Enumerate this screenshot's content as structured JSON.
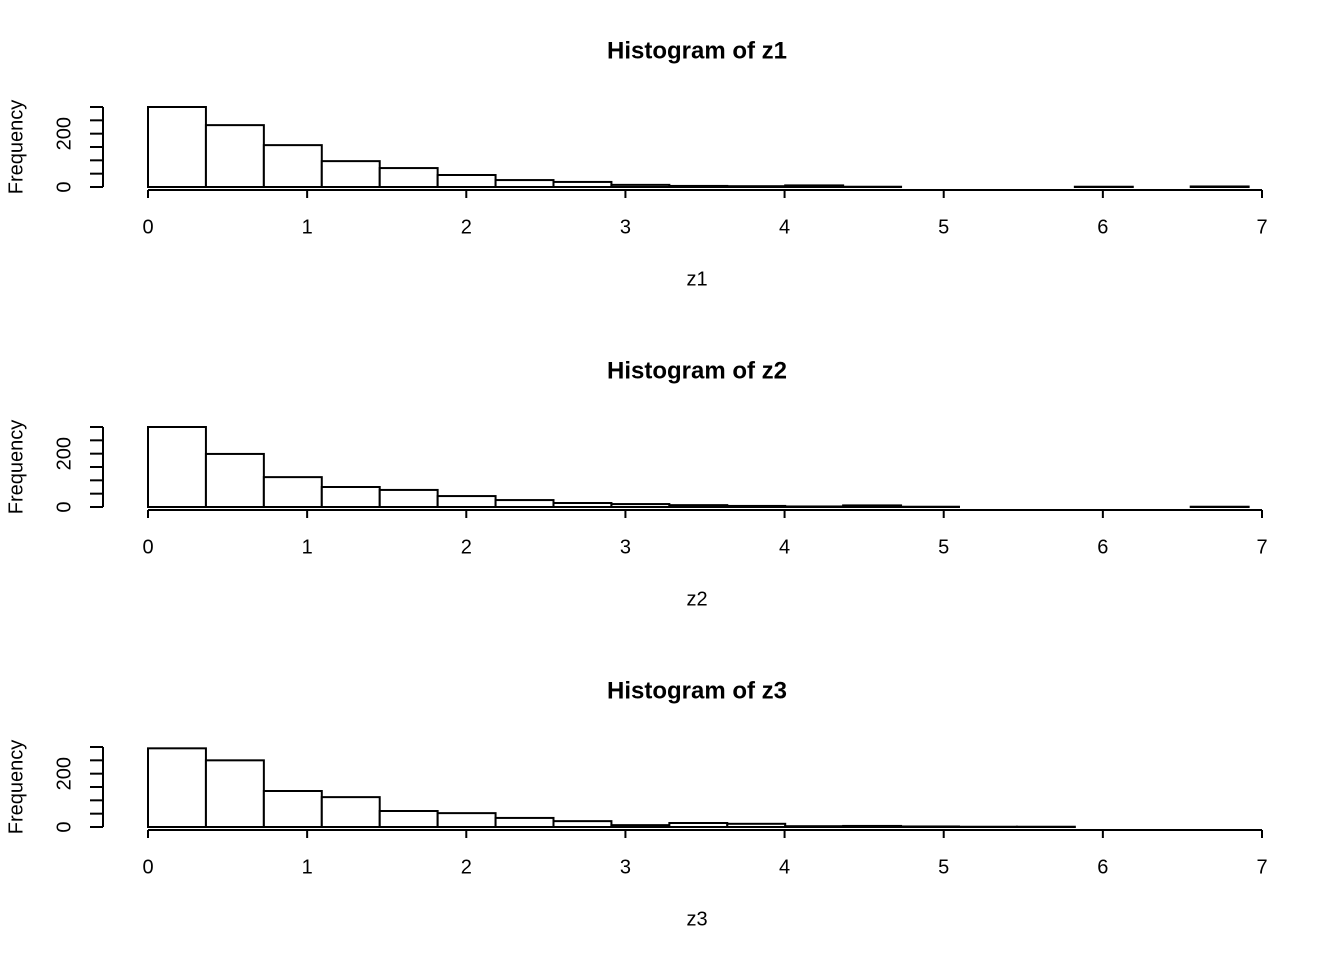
{
  "chart_data": [
    {
      "type": "histogram",
      "title": "Histogram of z1",
      "xlabel": "z1",
      "ylabel": "Frequency",
      "bins": [
        0,
        0.364,
        0.728,
        1.092,
        1.456,
        1.82,
        2.184,
        2.548,
        2.912,
        3.276,
        3.64,
        4.004,
        4.368,
        4.732,
        5.096,
        5.46,
        5.824,
        6.188,
        6.552,
        6.916
      ],
      "counts": [
        300,
        232,
        157,
        97,
        71,
        45,
        26,
        19,
        8,
        4,
        3,
        6,
        1,
        0,
        0,
        0,
        1,
        0,
        2
      ],
      "xlim": [
        0,
        7
      ],
      "xticks": [
        0,
        1,
        2,
        3,
        4,
        5,
        6,
        7
      ],
      "ylim": [
        0,
        300
      ],
      "yticks": [
        0,
        200
      ],
      "yminor_ticks": [
        50,
        100,
        150,
        250,
        300
      ],
      "color": "#ffffff"
    },
    {
      "type": "histogram",
      "title": "Histogram of z2",
      "xlabel": "z2",
      "ylabel": "Frequency",
      "bins": [
        0,
        0.364,
        0.728,
        1.092,
        1.456,
        1.82,
        2.184,
        2.548,
        2.912,
        3.276,
        3.64,
        4.004,
        4.368,
        4.732,
        5.096,
        5.46,
        5.824,
        6.188,
        6.552,
        6.916
      ],
      "counts": [
        300,
        199,
        112,
        75,
        64,
        41,
        26,
        15,
        11,
        7,
        4,
        2,
        6,
        1,
        0,
        0,
        0,
        0,
        1
      ],
      "xlim": [
        0,
        7
      ],
      "xticks": [
        0,
        1,
        2,
        3,
        4,
        5,
        6,
        7
      ],
      "ylim": [
        0,
        300
      ],
      "yticks": [
        0,
        200
      ],
      "yminor_ticks": [
        50,
        100,
        150,
        250,
        300
      ],
      "color": "#ffffff"
    },
    {
      "type": "histogram",
      "title": "Histogram of z3",
      "xlabel": "z3",
      "ylabel": "Frequency",
      "bins": [
        0,
        0.364,
        0.728,
        1.092,
        1.456,
        1.82,
        2.184,
        2.548,
        2.912,
        3.276,
        3.64,
        4.004,
        4.368,
        4.732,
        5.096,
        5.46,
        5.824,
        6.188,
        6.552,
        6.916
      ],
      "counts": [
        295,
        250,
        135,
        112,
        60,
        52,
        34,
        22,
        7,
        15,
        12,
        3,
        4,
        2,
        1,
        1,
        0,
        0,
        0
      ],
      "xlim": [
        0,
        7
      ],
      "xticks": [
        0,
        1,
        2,
        3,
        4,
        5,
        6,
        7
      ],
      "ylim": [
        0,
        300
      ],
      "yticks": [
        0,
        200
      ],
      "yminor_ticks": [
        50,
        100,
        150,
        250,
        300
      ],
      "color": "#ffffff"
    }
  ]
}
